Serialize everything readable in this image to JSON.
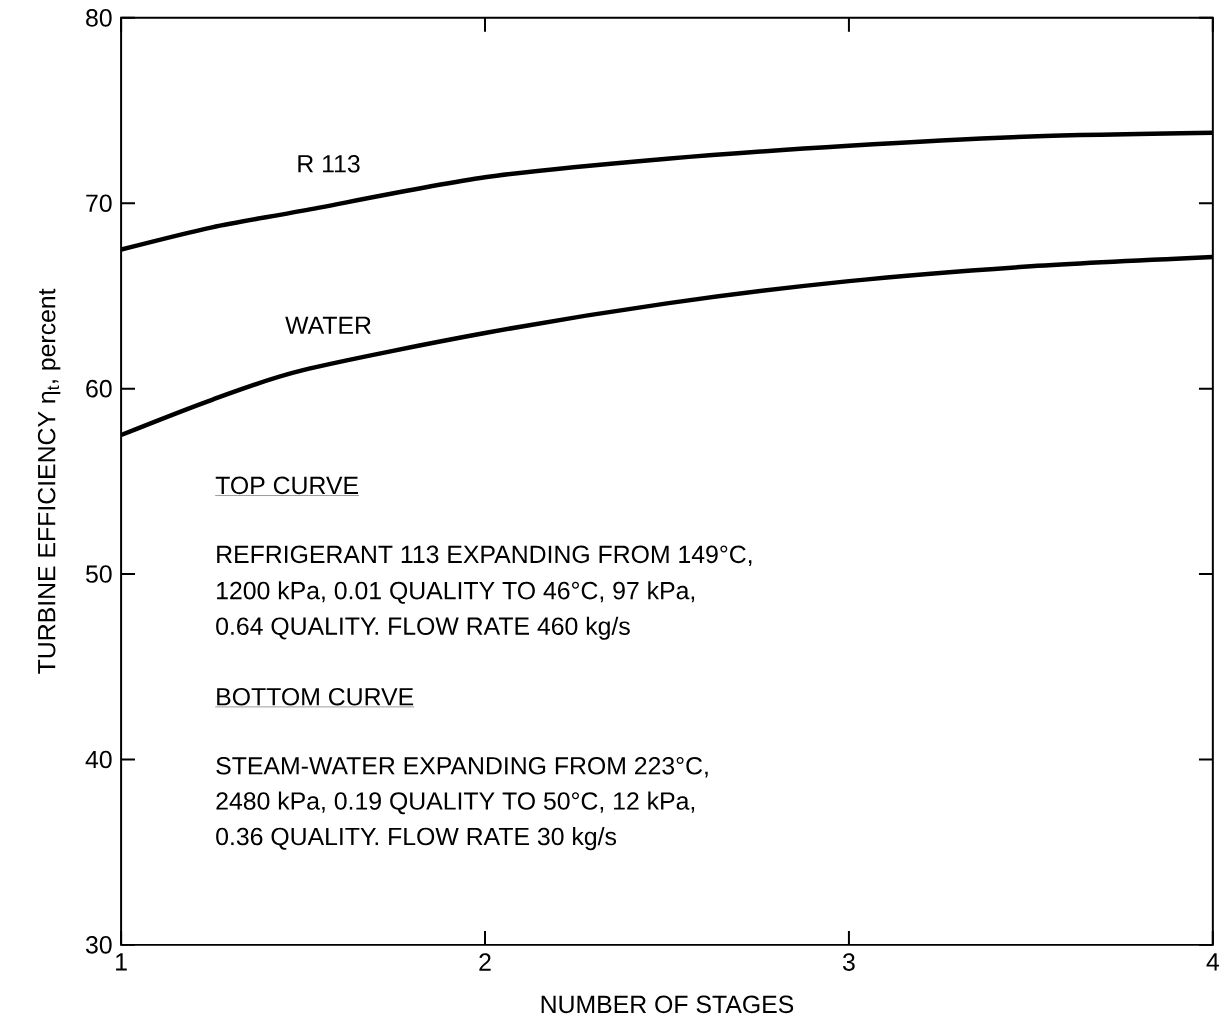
{
  "chart_data": {
    "type": "line",
    "xlabel": "NUMBER  OF  STAGES",
    "ylabel": "TURBINE  EFFICIENCY η$_{t}$,   percent",
    "x": [
      1,
      1.25,
      1.5,
      2,
      2.5,
      3,
      3.5,
      4
    ],
    "series": [
      {
        "name": "R 113",
        "color": "#000000",
        "values": [
          67.5,
          68.7,
          69.6,
          71.4,
          72.4,
          73.1,
          73.6,
          73.8
        ]
      },
      {
        "name": "WATER",
        "color": "#000000",
        "values": [
          57.5,
          59.4,
          61.0,
          63.0,
          64.6,
          65.8,
          66.6,
          67.1
        ]
      }
    ],
    "xlim": [
      1,
      4
    ],
    "ylim": [
      30,
      80
    ],
    "xticks": [
      1,
      2,
      3,
      4
    ],
    "yticks": [
      30,
      40,
      50,
      60,
      70,
      80
    ],
    "line_style": "solid",
    "annotations": [
      "TOP CURVE",
      "REFRIGERANT 113 EXPANDING FROM 149°C,",
      "1200 kPa, 0.01 QUALITY TO 46°C, 97 kPa,",
      "0.64 QUALITY. FLOW RATE 460 kg/s",
      "BOTTOM CURVE",
      "STEAM-WATER EXPANDING FROM 223°C,",
      "2480 kPa, 0.19 QUALITY TO 50°C, 12 kPa,",
      "0.36 QUALITY. FLOW RATE 30 kg/s"
    ]
  }
}
